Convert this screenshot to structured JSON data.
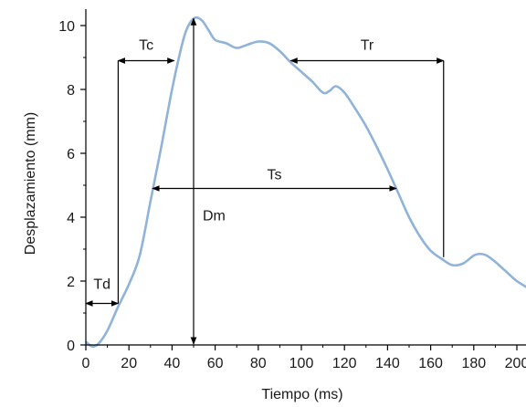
{
  "chart_data": {
    "type": "line",
    "xlabel": "Tiempo (ms)",
    "ylabel": "Desplazamiento (mm)",
    "xlim": [
      0,
      210
    ],
    "ylim": [
      0,
      10.5
    ],
    "xticks": [
      0,
      20,
      40,
      60,
      80,
      100,
      120,
      140,
      160,
      180,
      200
    ],
    "yticks": [
      0,
      2,
      4,
      6,
      8,
      10
    ],
    "grid": false,
    "legend": "none",
    "series": [
      {
        "color": "#8fb3d9",
        "x": [
          0,
          3,
          6,
          10,
          15,
          20,
          25,
          30,
          35,
          40,
          45,
          48,
          51,
          54,
          57,
          60,
          65,
          70,
          75,
          80,
          85,
          90,
          95,
          100,
          105,
          110,
          113,
          116,
          120,
          125,
          130,
          135,
          140,
          145,
          150,
          155,
          160,
          165,
          170,
          175,
          180,
          183,
          186,
          190,
          195,
          200,
          206
        ],
        "y": [
          0.1,
          -0.05,
          0.05,
          0.45,
          1.2,
          1.9,
          2.8,
          4.5,
          6.2,
          8.0,
          9.5,
          10.05,
          10.25,
          10.15,
          9.85,
          9.55,
          9.45,
          9.3,
          9.4,
          9.5,
          9.45,
          9.2,
          8.85,
          8.55,
          8.25,
          7.9,
          7.95,
          8.1,
          7.9,
          7.4,
          6.85,
          6.2,
          5.5,
          4.75,
          4.0,
          3.4,
          2.95,
          2.7,
          2.5,
          2.55,
          2.8,
          2.85,
          2.8,
          2.6,
          2.3,
          2.0,
          1.75
        ]
      }
    ],
    "annotations": {
      "td": {
        "label": "Td",
        "x1": 0,
        "x2": 15,
        "y": 1.3
      },
      "tc": {
        "label": "Tc",
        "x1": 15,
        "x2": 41,
        "y": 8.9
      },
      "tr": {
        "label": "Tr",
        "x1": 95,
        "x2": 166,
        "y": 8.9
      },
      "ts": {
        "label": "Ts",
        "x1": 31,
        "x2": 144,
        "y": 4.9
      },
      "dm": {
        "label": "Dm",
        "x": 50,
        "y1": 0,
        "y2": 10.25
      },
      "vlines": [
        {
          "x": 15,
          "y_bottom": 1.3,
          "y_top": 8.9
        },
        {
          "x": 166,
          "y_bottom": 2.75,
          "y_top": 8.9
        }
      ]
    }
  }
}
